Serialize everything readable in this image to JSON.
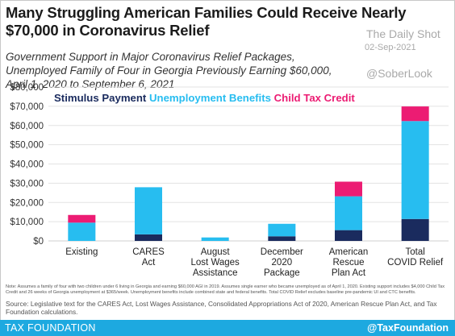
{
  "title": "Many Struggling American Families Could Receive Nearly $70,000 in Coronavirus Relief",
  "subtitle": "Government Support in Major Coronavirus Relief Packages, Unemployed Family of Four in Georgia Previously Earning $60,000, April 1, 2020 to September 6, 2021",
  "watermark": {
    "source": "The Daily Shot",
    "date": "02-Sep-2021",
    "handle": "@SoberLook"
  },
  "notes": "Note: Assumes a family of four with two children under 6 living in Georgia and earning $60,000 AGI in 2019. Assumes single earner who became unemployed as of April 1, 2020. Existing support includes $4,000 Child Tax Credit and 26 weeks of Georgia unemployment at $365/week. Unemployment benefits include combined state and federal benefits. Total COVID Relief excludes baseline pre-pandemic UI and CTC benefits.",
  "source": "Source: Legislative text for the CARES Act, Lost Wages Assistance, Consolidated Appropriations Act of 2020, American Rescue Plan Act, and Tax Foundation calculations.",
  "footer": {
    "org": "TAX FOUNDATION",
    "handle": "@TaxFoundation"
  },
  "colors": {
    "stimulus": "#1a2b5e",
    "unemployment": "#27bdf0",
    "ctc": "#ec1c73",
    "footer": "#1da9e0"
  },
  "chart_data": {
    "type": "bar",
    "stacked": true,
    "categories": [
      "Existing",
      "CARES Act",
      "August Lost Wages Assistance",
      "December 2020 Package",
      "American Rescue Plan Act",
      "Total COVID Relief"
    ],
    "category_lines": [
      [
        "Existing"
      ],
      [
        "CARES",
        "Act"
      ],
      [
        "August",
        "Lost Wages",
        "Assistance"
      ],
      [
        "December",
        "2020",
        "Package"
      ],
      [
        "American",
        "Rescue",
        "Plan Act"
      ],
      [
        "Total",
        "COVID Relief"
      ]
    ],
    "series": [
      {
        "name": "Stimulus Payment",
        "color": "#1a2b5e",
        "values": [
          0,
          3400,
          0,
          2400,
          5600,
          11400
        ]
      },
      {
        "name": "Unemployment Benefits",
        "color": "#27bdf0",
        "values": [
          9500,
          24500,
          1800,
          6500,
          17600,
          50900
        ]
      },
      {
        "name": "Child Tax Credit",
        "color": "#ec1c73",
        "values": [
          4000,
          0,
          0,
          0,
          7600,
          7600
        ]
      }
    ],
    "yticks": [
      0,
      10000,
      20000,
      30000,
      40000,
      50000,
      60000,
      70000,
      80000
    ],
    "ytick_labels": [
      "$0",
      "$10,000",
      "$20,000",
      "$30,000",
      "$40,000",
      "$50,000",
      "$60,000",
      "$70,000",
      "$80,000"
    ],
    "ylim": [
      0,
      80000
    ],
    "grid": true,
    "legend": "top-left"
  }
}
